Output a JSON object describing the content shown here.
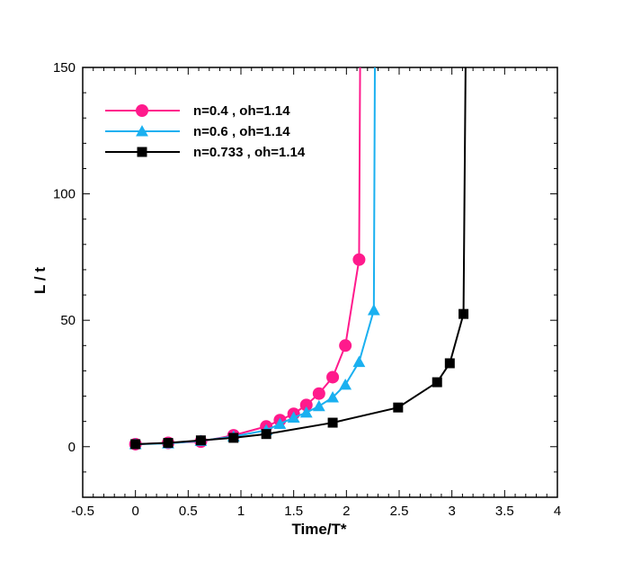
{
  "chart_data": {
    "type": "line",
    "title": "",
    "xlabel": "Time/T*",
    "ylabel": "L / t",
    "xlim": [
      -0.5,
      4
    ],
    "ylim": [
      -20,
      150
    ],
    "xticks": [
      -0.5,
      0,
      0.5,
      1,
      1.5,
      2,
      2.5,
      3,
      3.5,
      4
    ],
    "xtick_labels": [
      "-0.5",
      "0",
      "0.5",
      "1",
      "1.5",
      "2",
      "2.5",
      "3",
      "3.5",
      "4"
    ],
    "yticks": [
      0,
      50,
      100,
      150
    ],
    "ytick_labels": [
      "0",
      "50",
      "100",
      "150"
    ],
    "grid": false,
    "legend_position": "top-left",
    "series": [
      {
        "name": "n=0.4 , oh=1.14",
        "color": "#ff1a8c",
        "marker": "circle",
        "x": [
          0,
          0.31,
          0.62,
          0.93,
          1.24,
          1.37,
          1.5,
          1.62,
          1.74,
          1.87,
          1.99,
          2.12
        ],
        "y": [
          1,
          1.5,
          2,
          4.5,
          8,
          10.5,
          13,
          16.5,
          21,
          27.5,
          40,
          74
        ],
        "tail": {
          "x": 2.13,
          "y": 150
        }
      },
      {
        "name": "n=0.6 , oh=1.14",
        "color": "#1ab0f0",
        "marker": "triangle",
        "x": [
          0,
          0.31,
          0.62,
          0.93,
          1.24,
          1.37,
          1.5,
          1.62,
          1.74,
          1.87,
          1.99,
          2.12,
          2.26
        ],
        "y": [
          1,
          1.3,
          2.3,
          4,
          6.5,
          9,
          11.5,
          13.5,
          16,
          19.5,
          24.5,
          33.5,
          54
        ],
        "tail": {
          "x": 2.27,
          "y": 150
        }
      },
      {
        "name": "n=0.733 , oh=1.14",
        "color": "#000000",
        "marker": "square",
        "x": [
          0,
          0.31,
          0.62,
          0.93,
          1.24,
          1.87,
          2.49,
          2.86,
          2.98,
          3.11
        ],
        "y": [
          1,
          1.5,
          2.5,
          3.5,
          5,
          9.5,
          15.5,
          25.5,
          33,
          52.5
        ],
        "tail": {
          "x": 3.13,
          "y": 150
        }
      }
    ]
  }
}
